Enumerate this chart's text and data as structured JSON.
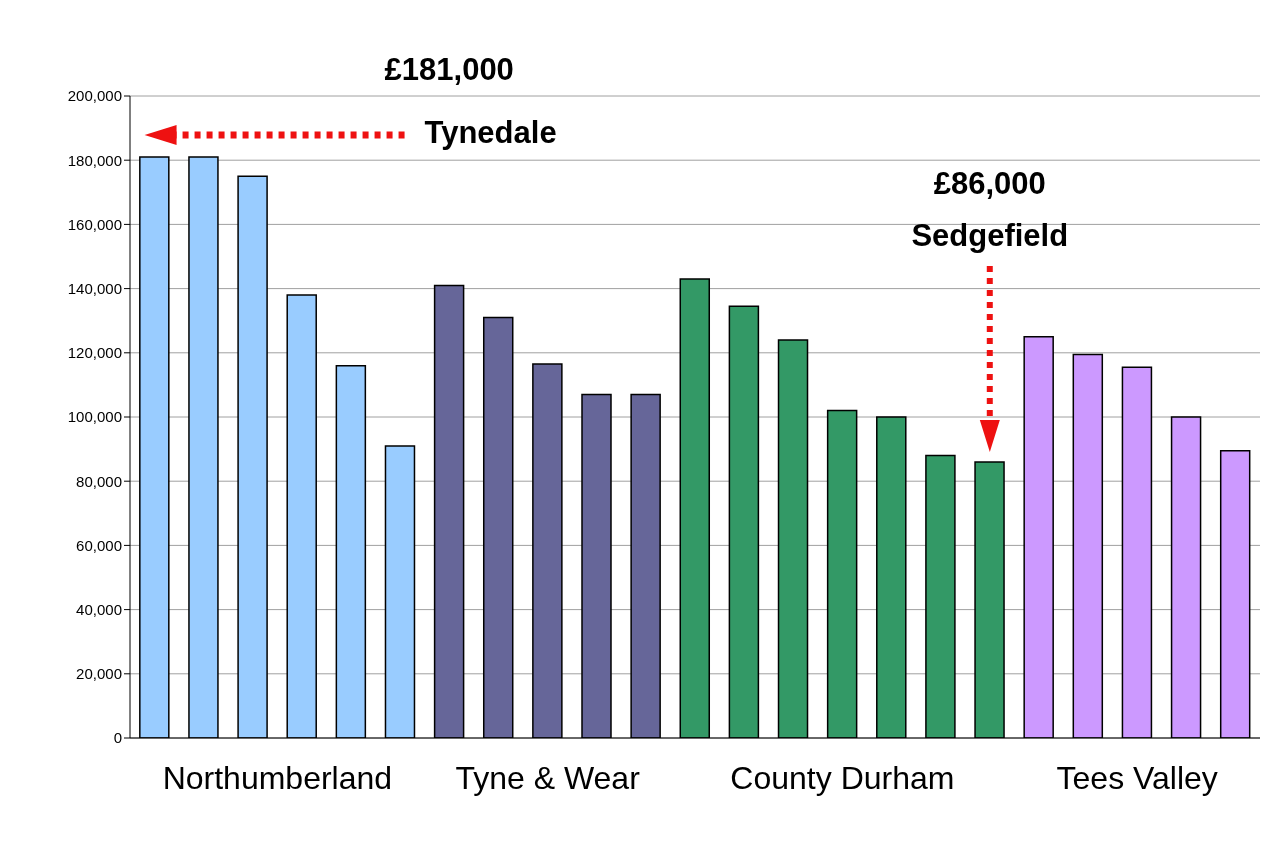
{
  "chart_data": {
    "type": "bar",
    "categories": [
      null,
      null,
      null,
      null,
      null,
      null,
      null,
      null,
      null,
      null,
      null,
      null,
      null,
      null,
      null,
      null,
      null,
      null,
      null,
      null,
      null,
      null,
      null
    ],
    "series": [
      {
        "name": "Northumberland",
        "color": "#99ccff",
        "values": [
          181000,
          181000,
          175000,
          138000,
          116000,
          91000,
          null,
          null,
          null,
          null,
          null,
          null,
          null,
          null,
          null,
          null,
          null,
          null,
          null,
          null,
          null,
          null,
          null
        ]
      },
      {
        "name": "Tyne & Wear",
        "color": "#666699",
        "values": [
          null,
          null,
          null,
          null,
          null,
          null,
          141000,
          131000,
          116500,
          107000,
          107000,
          null,
          null,
          null,
          null,
          null,
          null,
          null,
          null,
          null,
          null,
          null,
          null
        ]
      },
      {
        "name": "County Durham",
        "color": "#339966",
        "values": [
          null,
          null,
          null,
          null,
          null,
          null,
          null,
          null,
          null,
          null,
          null,
          143000,
          134500,
          124000,
          102000,
          100000,
          88000,
          86000,
          null,
          null,
          null,
          null,
          null
        ]
      },
      {
        "name": "Tees Valley",
        "color": "#cc99ff",
        "values": [
          null,
          null,
          null,
          null,
          null,
          null,
          null,
          null,
          null,
          null,
          null,
          null,
          null,
          null,
          null,
          null,
          null,
          null,
          125000,
          119500,
          115500,
          100000,
          89500
        ]
      }
    ],
    "ylim": [
      0,
      200000
    ],
    "yticks": [
      {
        "value": 0,
        "label": "0"
      },
      {
        "value": 20000,
        "label": "20,000"
      },
      {
        "value": 40000,
        "label": "40,000"
      },
      {
        "value": 60000,
        "label": "60,000"
      },
      {
        "value": 80000,
        "label": "80,000"
      },
      {
        "value": 100000,
        "label": "100,000"
      },
      {
        "value": 120000,
        "label": "120,000"
      },
      {
        "value": 140000,
        "label": "140,000"
      },
      {
        "value": 160000,
        "label": "160,000"
      },
      {
        "value": 180000,
        "label": "180,000"
      },
      {
        "value": 200000,
        "label": "200,000"
      }
    ],
    "grid": "y",
    "annotations": [
      "£181,000",
      "Tynedale",
      "£86,000",
      "Sedgefield"
    ]
  }
}
